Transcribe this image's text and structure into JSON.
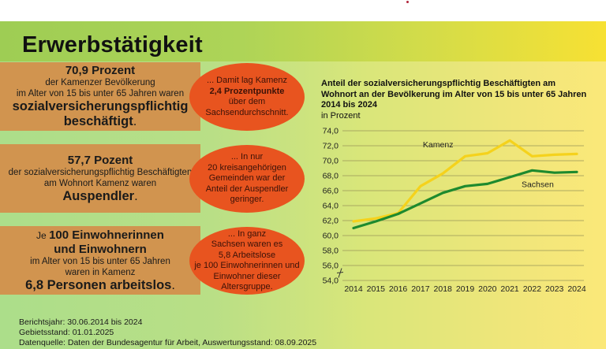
{
  "page": {
    "title": "Erwerbstätigkeit"
  },
  "boxes": [
    {
      "line1": "70,9 Prozent",
      "line2": "der Kamenzer Bevölkerung",
      "line3": "im Alter von 15 bis unter 65 Jahren waren",
      "line4": "sozialversicherungspflichtig",
      "line5": "beschäftigt",
      "line5_suffix": "."
    },
    {
      "line1": "57,7 Pozent",
      "line2": "der sozialversicherungspflichtig Beschäftigten",
      "line3": "am Wohnort Kamenz waren",
      "line4": "Auspendler",
      "line4_suffix": "."
    },
    {
      "line1_prefix": "Je ",
      "line1": "100 Einwohnerinnen",
      "line2": "und Einwohnern",
      "line3": "im Alter von 15 bis unter 65 Jahren",
      "line4": "waren in Kamenz",
      "line5": "6,8 Personen arbeitslos",
      "line5_suffix": "."
    }
  ],
  "bubbles": [
    {
      "lines": [
        "... Damit lag Kamenz",
        "2,4 Prozentpunkte",
        "über dem",
        "Sachsendurchschnitt."
      ]
    },
    {
      "lines": [
        "... In nur",
        "20 kreisangehörigen",
        "Gemeinden war der",
        "Anteil der Auspendler",
        "geringer."
      ]
    },
    {
      "lines": [
        "... In ganz",
        "Sachsen waren es",
        "5,8 Arbeitslose",
        "je 100 Einwohnerinnen und",
        "Einwohner dieser",
        "Altersgruppe."
      ]
    }
  ],
  "footer": {
    "line1": "Berichtsjahr: 30.06.2014 bis 2024",
    "line2": "Gebietsstand: 01.01.2025",
    "line3": "Datenquelle: Daten der Bundesagentur für Arbeit, Auswertungsstand: 08.09.2025"
  },
  "colors": {
    "kamenz": "#f5d21c",
    "sachsen": "#1e8a2e",
    "box": "#d1944f",
    "bubble": "#e8541f",
    "grid": "#9e9a5a"
  },
  "chart_data": {
    "type": "line",
    "title": "Anteil der sozialversicherungspflichtig Beschäftigten am Wohnort an der Bevölkerung im Alter von 15 bis unter 65 Jahren 2014 bis 2024",
    "title_lines": [
      "Anteil der sozialversicherungspflichtig Beschäftigten am",
      "Wohnort an der Bevölkerung im Alter von 15 bis unter 65 Jahren",
      "2014 bis 2024"
    ],
    "ylabel": "in Prozent",
    "xlabel": "",
    "x": [
      "2014",
      "2015",
      "2016",
      "2017",
      "2018",
      "2019",
      "2020",
      "2021",
      "2022",
      "2023",
      "2024"
    ],
    "ylim": [
      54.0,
      74.0
    ],
    "yticks": [
      "54,0",
      "56,0",
      "58,0",
      "60,0",
      "62,0",
      "64,0",
      "66,0",
      "68,0",
      "70,0",
      "72,0",
      "74,0"
    ],
    "ytick_values": [
      54,
      56,
      58,
      60,
      62,
      64,
      66,
      68,
      70,
      72,
      74
    ],
    "grid": true,
    "axis_break": true,
    "series": [
      {
        "name": "Kamenz",
        "values": [
          61.9,
          62.3,
          63.0,
          66.6,
          68.3,
          70.6,
          71.0,
          72.7,
          70.6,
          70.8,
          70.9
        ]
      },
      {
        "name": "Sachsen",
        "values": [
          61.0,
          61.9,
          62.9,
          64.3,
          65.7,
          66.6,
          66.9,
          67.8,
          68.7,
          68.4,
          68.5
        ]
      }
    ],
    "annotations": [
      {
        "text": "Kamenz",
        "series": "Kamenz",
        "near": "2018",
        "position": "above"
      },
      {
        "text": "Sachsen",
        "series": "Sachsen",
        "near": "2022",
        "position": "below"
      }
    ]
  }
}
